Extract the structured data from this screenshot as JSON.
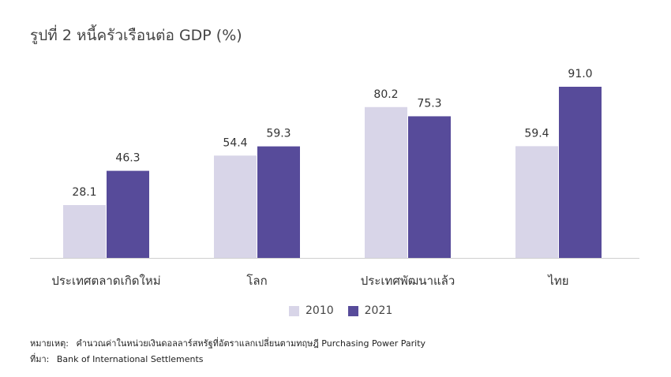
{
  "chart_data": {
    "type": "bar",
    "title": "รูปที่ 2 หนี้ครัวเรือนต่อ GDP (%)",
    "categories": [
      "ประเทศตลาดเกิดใหม่",
      "โลก",
      "ประเทศพัฒนาแล้ว",
      "ไทย"
    ],
    "series": [
      {
        "name": "2010",
        "values": [
          28.1,
          54.4,
          80.2,
          59.4
        ],
        "color": "#d8d5e8"
      },
      {
        "name": "2021",
        "values": [
          46.3,
          59.3,
          75.3,
          91.0
        ],
        "color": "#574b9a"
      }
    ],
    "value_labels": [
      [
        "28.1",
        "54.4",
        "80.2",
        "59.4"
      ],
      [
        "46.3",
        "59.3",
        "75.3",
        "91.0"
      ]
    ],
    "xlabel": "",
    "ylabel": "",
    "ylim": [
      0,
      100
    ],
    "grid": false,
    "legend_position": "bottom-center"
  },
  "notes": {
    "remark_label": "หมายเหตุ:",
    "remark_text": "คำนวณค่าในหน่วยเงินดอลลาร์สหรัฐที่อัตราแลกเปลี่ยนตามทฤษฎี Purchasing Power Parity",
    "source_label": "ที่มา:",
    "source_text": "Bank of International Settlements"
  },
  "colors": {
    "axis": "#cfcfcf",
    "label_text": "#333333"
  }
}
